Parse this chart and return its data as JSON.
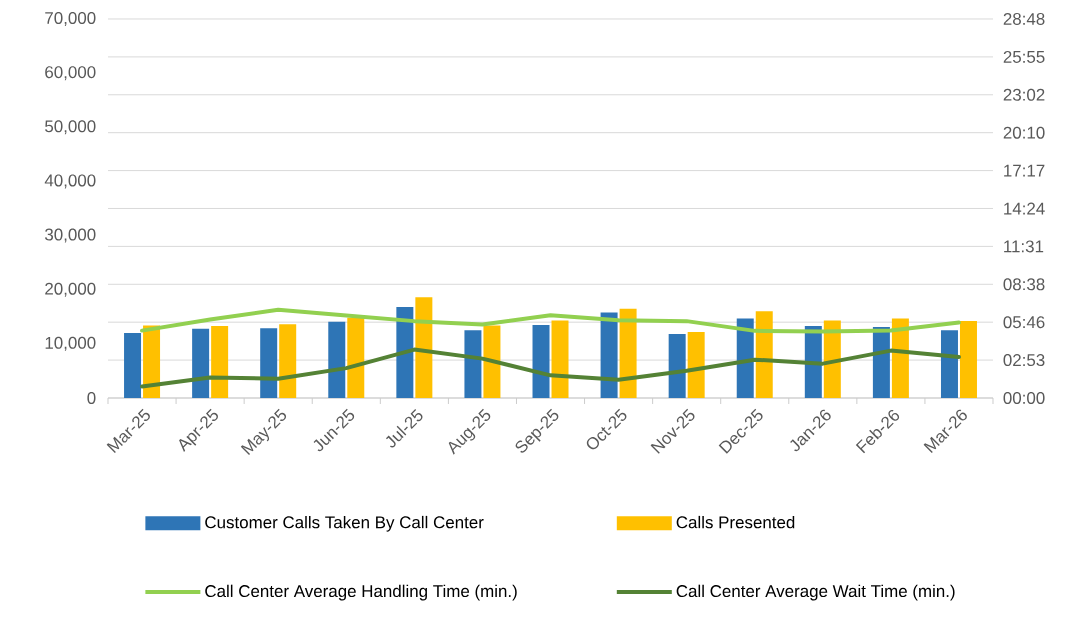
{
  "chart_data": {
    "type": "bar",
    "categories": [
      "Mar-25",
      "Apr-25",
      "May-25",
      "Jun-25",
      "Jul-25",
      "Aug-25",
      "Sep-25",
      "Oct-25",
      "Nov-25",
      "Dec-25",
      "Jan-26",
      "Feb-26",
      "Mar-26"
    ],
    "series": [
      {
        "name": "Customer Calls Taken By Call Center",
        "color": "#2e75b6",
        "values": [
          12000,
          12800,
          12900,
          14100,
          16800,
          12500,
          13500,
          15800,
          11800,
          14700,
          13300,
          13100,
          12500
        ]
      },
      {
        "name": "Calls Presented",
        "color": "#ffc000",
        "values": [
          13400,
          13300,
          13600,
          14800,
          18600,
          13400,
          14300,
          16500,
          12200,
          16000,
          14300,
          14700,
          14200
        ]
      },
      {
        "name": "Call Center Average Handling Time (min.)",
        "type": "line",
        "axis": "y2",
        "color": "#92d050",
        "values": [
          5.12,
          5.96,
          6.7,
          6.27,
          5.84,
          5.58,
          6.29,
          5.91,
          5.84,
          5.1,
          5.05,
          5.12,
          5.73
        ]
      },
      {
        "name": "Call Center Average Wait Time (min.)",
        "type": "line",
        "axis": "y2",
        "color": "#548235",
        "values": [
          0.88,
          1.56,
          1.46,
          2.27,
          3.68,
          2.99,
          1.72,
          1.39,
          2.07,
          2.91,
          2.61,
          3.6,
          3.11
        ]
      }
    ],
    "ylim": [
      0,
      70000
    ],
    "yticks": [
      0,
      {
        "value": 10000,
        "label": "10,000"
      },
      {
        "value": 20000,
        "label": "20,000"
      },
      {
        "value": 30000,
        "label": "30,000"
      },
      {
        "value": 40000,
        "label": "40,000"
      },
      {
        "value": 50000,
        "label": "50,000"
      },
      {
        "value": 60000,
        "label": "60,000"
      },
      {
        "value": 70000,
        "label": "70,000"
      }
    ],
    "y2lim": [
      0,
      28.8
    ],
    "y2ticks": [
      {
        "value": 0,
        "label": "00:00"
      },
      {
        "value": 2.88,
        "label": "02:53"
      },
      {
        "value": 5.76,
        "label": "05:46"
      },
      {
        "value": 8.64,
        "label": "08:38"
      },
      {
        "value": 11.52,
        "label": "11:31"
      },
      {
        "value": 14.4,
        "label": "14:24"
      },
      {
        "value": 17.28,
        "label": "17:17"
      },
      {
        "value": 20.16,
        "label": "20:10"
      },
      {
        "value": 23.04,
        "label": "23:02"
      },
      {
        "value": 25.92,
        "label": "25:55"
      },
      {
        "value": 28.8,
        "label": "28:48"
      }
    ],
    "grid": "y",
    "legend": "bottom"
  }
}
